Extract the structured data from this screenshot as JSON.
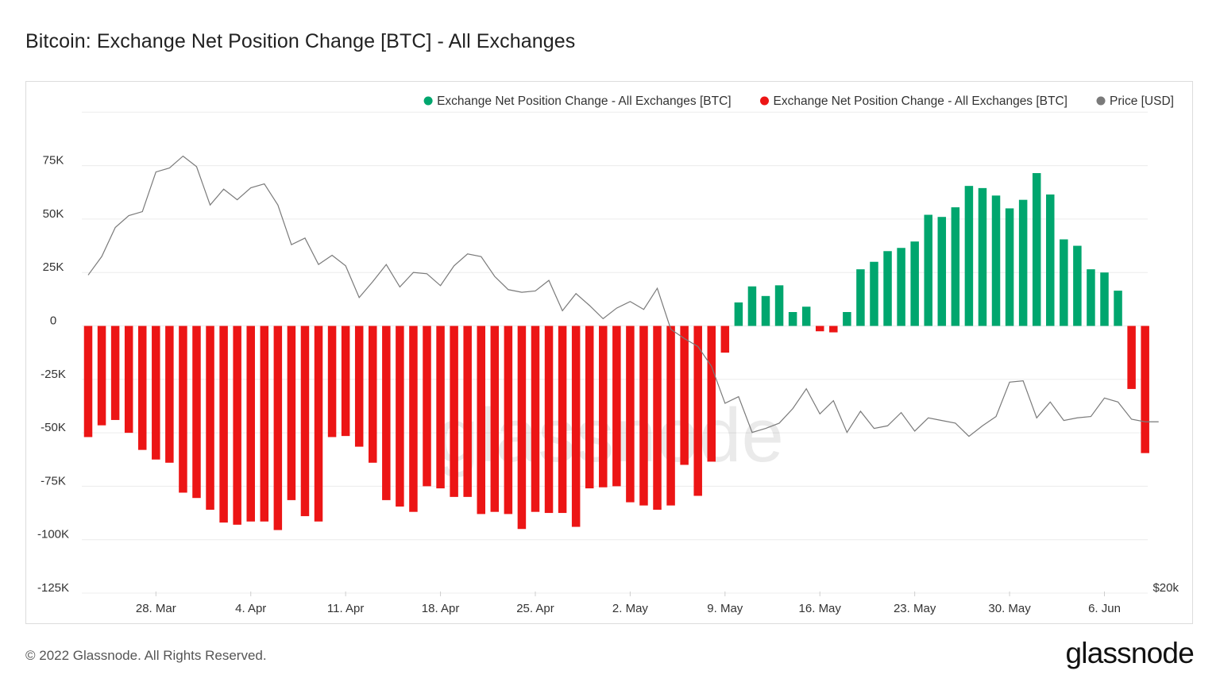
{
  "title": "Bitcoin: Exchange Net Position Change [BTC] - All Exchanges",
  "footer": {
    "copyright": "© 2022 Glassnode. All Rights Reserved.",
    "logo": "glassnode"
  },
  "watermark": "glassnode",
  "colors": {
    "positive": "#00a66e",
    "negative": "#ec1515",
    "price": "#7a7a7a",
    "grid": "#ececec"
  },
  "chart_data": {
    "type": "bar",
    "x_start_date": "2022-03-22",
    "y_ticks": [
      75000,
      50000,
      25000,
      0,
      -25000,
      -50000,
      -75000,
      -100000,
      -125000
    ],
    "y_tick_labels": [
      "75K",
      "50K",
      "25K",
      "0",
      "-25K",
      "-50K",
      "-75K",
      "-100K",
      "-125K"
    ],
    "ylim": [
      -125000,
      100000
    ],
    "x_ticks": [
      {
        "index": 5,
        "label": "28. Mar"
      },
      {
        "index": 12,
        "label": "4. Apr"
      },
      {
        "index": 19,
        "label": "11. Apr"
      },
      {
        "index": 26,
        "label": "18. Apr"
      },
      {
        "index": 33,
        "label": "25. Apr"
      },
      {
        "index": 40,
        "label": "2. May"
      },
      {
        "index": 47,
        "label": "9. May"
      },
      {
        "index": 54,
        "label": "16. May"
      },
      {
        "index": 61,
        "label": "23. May"
      },
      {
        "index": 68,
        "label": "30. May"
      },
      {
        "index": 75,
        "label": "6. Jun"
      }
    ],
    "right_axis_label": "$20k",
    "legend": [
      {
        "label": "Exchange Net Position Change - All Exchanges [BTC]",
        "color": "#00a66e"
      },
      {
        "label": "Exchange Net Position Change - All Exchanges [BTC]",
        "color": "#ec1515"
      },
      {
        "label": "Price [USD]",
        "color": "#7a7a7a"
      }
    ],
    "legend_position": "top-right",
    "grid": true,
    "series": [
      {
        "name": "Exchange Net Position Change - All Exchanges [BTC]",
        "values": [
          -52000,
          -46500,
          -44000,
          -50000,
          -58000,
          -62500,
          -64000,
          -78000,
          -80500,
          -86000,
          -92000,
          -93000,
          -91500,
          -91500,
          -95500,
          -81500,
          -89000,
          -91500,
          -52000,
          -51500,
          -56500,
          -64000,
          -81500,
          -84500,
          -87000,
          -75000,
          -76000,
          -80000,
          -80000,
          -88000,
          -87000,
          -88000,
          -95000,
          -87000,
          -87500,
          -87500,
          -94000,
          -76000,
          -75500,
          -75000,
          -82500,
          -84000,
          -86000,
          -84000,
          -65000,
          -79500,
          -63500,
          -12500,
          11000,
          18500,
          14000,
          19000,
          6500,
          9000,
          -2500,
          -3000,
          6500,
          26500,
          30000,
          35000,
          36500,
          39500,
          52000,
          51000,
          55500,
          65500,
          64500,
          61000,
          55000,
          59000,
          71500,
          61500,
          40500,
          37500,
          26500,
          25000,
          16500,
          -29500,
          -59500
        ]
      },
      {
        "name": "Price [USD]",
        "values": [
          41000,
          42400,
          44600,
          45500,
          45800,
          48800,
          49100,
          50000,
          49200,
          46300,
          47500,
          46700,
          47600,
          47900,
          46300,
          43300,
          43800,
          41800,
          42500,
          41700,
          39300,
          40500,
          41800,
          40100,
          41200,
          41100,
          40200,
          41700,
          42600,
          42400,
          40900,
          39900,
          39700,
          39800,
          40600,
          38300,
          39600,
          38700,
          37700,
          38500,
          39000,
          38400,
          40000,
          36900,
          36200,
          35600,
          34100,
          31300,
          31800,
          29100,
          29400,
          29800,
          30900,
          32400,
          30500,
          31500,
          29100,
          30700,
          29400,
          29600,
          30600,
          29200,
          30200,
          30000,
          29800,
          28800,
          29600,
          30300,
          32900,
          33000,
          30200,
          31400,
          30000,
          30200,
          30300,
          31700,
          31400,
          30100,
          29900,
          29900
        ]
      }
    ]
  }
}
